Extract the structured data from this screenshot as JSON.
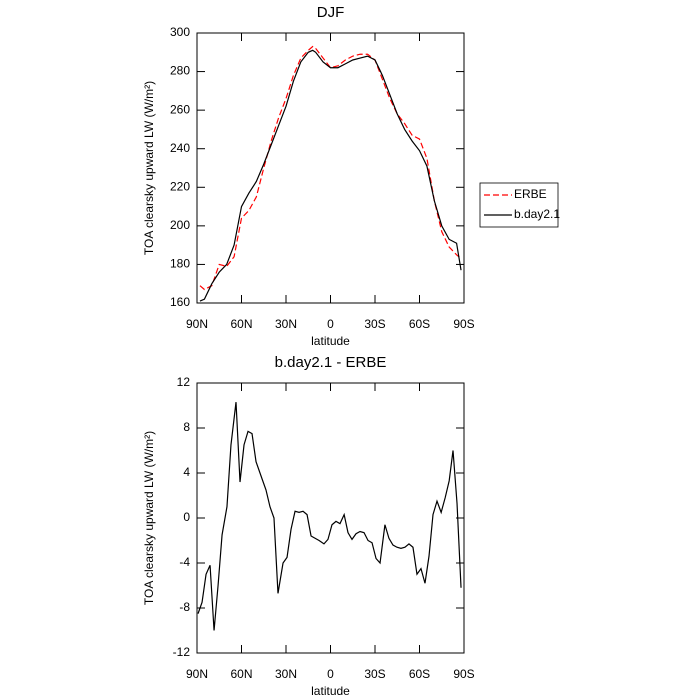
{
  "chart_data": [
    {
      "type": "line",
      "title": "DJF",
      "x_label": "latitude",
      "y_label": "TOA clearsky upward LW (W/m²)",
      "x": [
        88,
        85,
        80,
        75,
        70,
        65,
        60,
        55,
        50,
        45,
        40,
        35,
        30,
        25,
        20,
        15,
        12,
        10,
        5,
        0,
        -5,
        -10,
        -15,
        -20,
        -25,
        -30,
        -35,
        -40,
        -45,
        -50,
        -55,
        -60,
        -65,
        -70,
        -75,
        -80,
        -85,
        -88
      ],
      "series": [
        {
          "name": "ERBE",
          "color": "#ff0000",
          "line_style": "dashed",
          "values": [
            169,
            167,
            169,
            180,
            179,
            184,
            204,
            208,
            215,
            230,
            244,
            256,
            266,
            278,
            287,
            291,
            293,
            292,
            287,
            282,
            283,
            286,
            288,
            289,
            289,
            286,
            276,
            266,
            258,
            253,
            247,
            245,
            235,
            213,
            197,
            189,
            185,
            183
          ]
        },
        {
          "name": "b.day2.1",
          "color": "#000000",
          "line_style": "solid",
          "values": [
            161,
            162,
            170,
            176,
            180,
            190,
            210,
            217,
            223,
            232,
            242,
            252,
            262,
            275,
            285,
            290,
            291,
            290,
            285,
            282,
            282,
            284,
            286,
            287,
            288,
            286,
            278,
            268,
            258,
            250,
            244,
            239,
            231,
            213,
            200,
            193,
            191,
            177
          ]
        }
      ],
      "xlim": [
        90,
        -90
      ],
      "xticks": [
        {
          "value": 90,
          "label": "90N"
        },
        {
          "value": 60,
          "label": "60N"
        },
        {
          "value": 30,
          "label": "30N"
        },
        0,
        {
          "value": -30,
          "label": "30S"
        },
        {
          "value": -60,
          "label": "60S"
        },
        {
          "value": -90,
          "label": "90S"
        }
      ],
      "ylim": [
        160,
        300
      ],
      "yticks": [
        160,
        180,
        200,
        220,
        240,
        260,
        280,
        300
      ],
      "legend": "right"
    },
    {
      "type": "line",
      "title": "b.day2.1 - ERBE",
      "x_label": "latitude",
      "y_label": "TOA clearsky upward LW (W/m²)",
      "x": [
        89.3,
        86.6,
        83.9,
        81.2,
        78.5,
        75.8,
        73.1,
        69.8,
        67.1,
        63.7,
        61,
        58.3,
        55.6,
        52.9,
        50.2,
        46.2,
        43.5,
        40.8,
        38.1,
        35.4,
        32,
        29.3,
        26.6,
        23.9,
        21.2,
        18.5,
        15.8,
        13.1,
        10.4,
        7.7,
        4.4,
        1.7,
        -1,
        -3.7,
        -6.4,
        -9.2,
        -11.8,
        -14.5,
        -17.2,
        -19.9,
        -22.6,
        -25.3,
        -28,
        -30.7,
        -33.4,
        -36.7,
        -39.4,
        -42.1,
        -44.8,
        -47.5,
        -50.2,
        -52.9,
        -55.6,
        -58.3,
        -61,
        -63.7,
        -66.4,
        -69.1,
        -71.8,
        -74.6,
        -77.3,
        -80,
        -82.6,
        -85.3,
        -88
      ],
      "series": [
        {
          "name": "b.day2.1 - ERBE",
          "color": "#000000",
          "line_style": "solid",
          "values": [
            -8.5,
            -7.5,
            -5,
            -4.2,
            -10,
            -6,
            -1.5,
            1,
            6.5,
            10.3,
            3.2,
            6.5,
            7.7,
            7.5,
            5,
            3.5,
            2.5,
            1,
            0,
            -6.7,
            -4,
            -3.5,
            -1,
            0.6,
            0.5,
            0.6,
            0.3,
            -1.6,
            -1.8,
            -2,
            -2.3,
            -1.9,
            -0.6,
            -0.3,
            -0.5,
            0.3,
            -1.3,
            -1.9,
            -1.4,
            -1.2,
            -1.3,
            -2,
            -2.2,
            -3.6,
            -4,
            -0.6,
            -1.8,
            -2.4,
            -2.6,
            -2.7,
            -2.6,
            -2.3,
            -2.6,
            -5,
            -4.5,
            -5.8,
            -3.4,
            0.3,
            1.5,
            0.5,
            1.8,
            3.3,
            6,
            1.3,
            -6.2
          ]
        }
      ],
      "xlim": [
        90,
        -90
      ],
      "xticks": [
        {
          "value": 90,
          "label": "90N"
        },
        {
          "value": 60,
          "label": "60N"
        },
        {
          "value": 30,
          "label": "30N"
        },
        0,
        {
          "value": -30,
          "label": "30S"
        },
        {
          "value": -60,
          "label": "60S"
        },
        {
          "value": -90,
          "label": "90S"
        }
      ],
      "ylim": [
        -12,
        12
      ],
      "yticks": [
        -12,
        -8,
        -4,
        0,
        4,
        8,
        12
      ]
    }
  ]
}
